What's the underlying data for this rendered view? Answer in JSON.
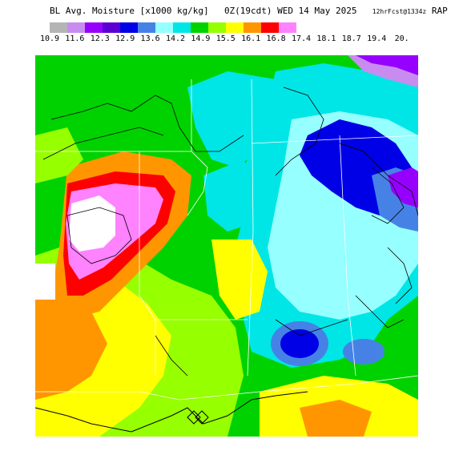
{
  "header": {
    "title": "BL Avg. Moisture [x1000 kg/kg]",
    "valid_time": "0Z(19cdt) WED 14 May 2025",
    "forecast": "12hrFcst@1334z",
    "model": "RAP"
  },
  "scale": {
    "labels": [
      "10.9",
      "11.6",
      "12.3",
      "12.9",
      "13.6",
      "14.2",
      "14.9",
      "15.5",
      "16.1",
      "16.8",
      "17.4",
      "18.1",
      "18.7",
      "19.4",
      "20."
    ],
    "colors": [
      "#b4b4b4",
      "#c88cf0",
      "#9600ff",
      "#5a00d2",
      "#0000e6",
      "#4682e6",
      "#96ffff",
      "#00e6e6",
      "#00d200",
      "#96ff00",
      "#ffff00",
      "#ff9600",
      "#ff0000",
      "#ff82ff"
    ]
  },
  "map": {
    "description_colors": {
      "green": "#00d200",
      "cyan": "#00e6e6",
      "light_cyan": "#96ffff",
      "lime": "#96ff00",
      "yellow": "#ffff00",
      "orange": "#ff9600",
      "red": "#ff0000",
      "pink": "#ff82ff",
      "blue": "#0000e6",
      "steel_blue": "#4682e6",
      "purple": "#9600ff",
      "lavender": "#c88cf0"
    }
  }
}
